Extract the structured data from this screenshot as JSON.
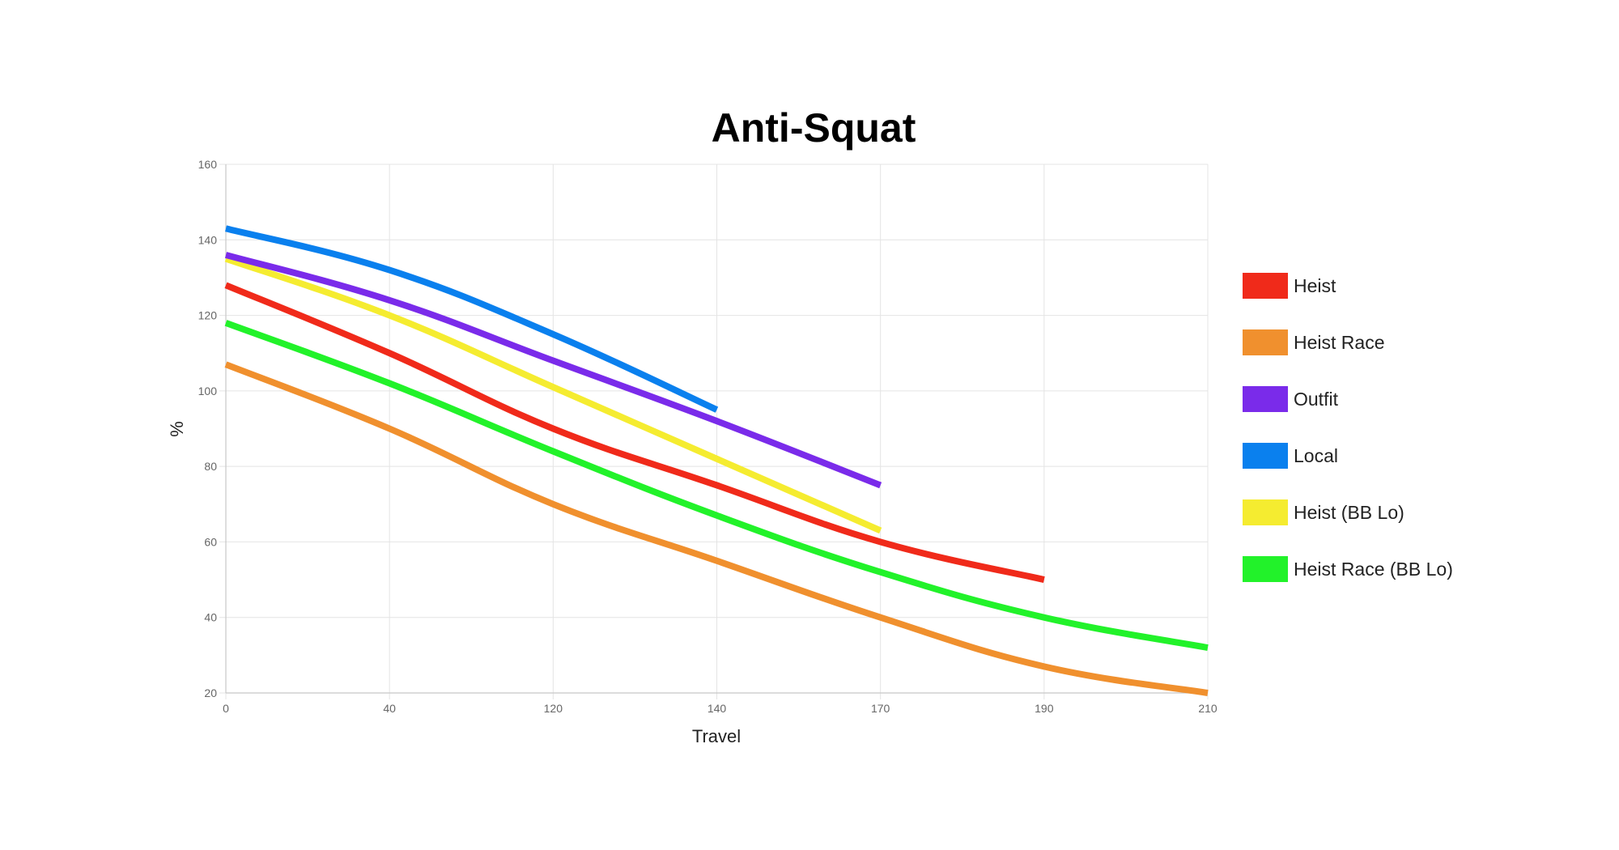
{
  "chart_data": {
    "type": "line",
    "title": "Anti-Squat",
    "xlabel": "Travel",
    "ylabel": "%",
    "x_categories": [
      "0",
      "40",
      "120",
      "140",
      "170",
      "190",
      "210"
    ],
    "y_ticks": [
      "20",
      "40",
      "60",
      "80",
      "100",
      "120",
      "140",
      "160"
    ],
    "ylim": [
      20,
      160
    ],
    "grid": true,
    "legend_position": "right",
    "series": [
      {
        "name": "Heist",
        "color": "#f02a1a",
        "values": [
          128,
          110,
          90,
          75,
          60,
          50
        ]
      },
      {
        "name": "Heist Race",
        "color": "#f0902e",
        "values": [
          107,
          90,
          70,
          55,
          40,
          27,
          20
        ]
      },
      {
        "name": "Outfit",
        "color": "#7a2bea",
        "values": [
          136,
          124,
          108,
          92,
          75
        ]
      },
      {
        "name": "Local",
        "color": "#0a80ee",
        "values": [
          143,
          132,
          115,
          95
        ]
      },
      {
        "name": "Heist (BB Lo)",
        "color": "#f5ec30",
        "values": [
          135,
          120,
          101,
          82,
          63
        ]
      },
      {
        "name": "Heist Race (BB Lo)",
        "color": "#22f22a",
        "values": [
          118,
          102,
          84,
          67,
          52,
          40,
          32
        ]
      }
    ]
  }
}
